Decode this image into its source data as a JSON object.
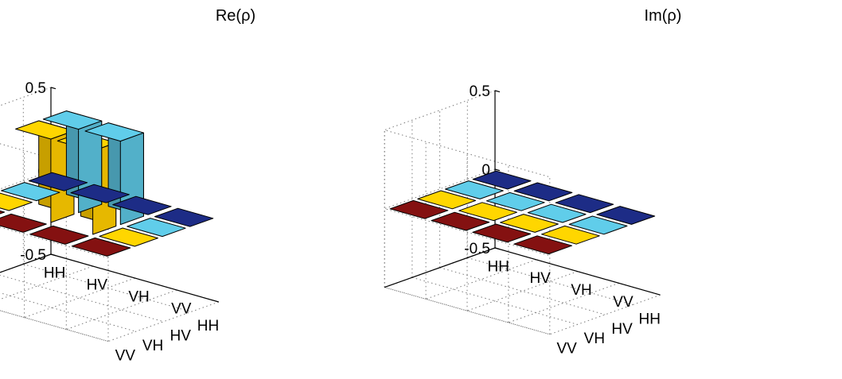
{
  "chart_data": [
    {
      "type": "bar3d",
      "title": "Re(ρ)",
      "row_labels": [
        "HH",
        "HV",
        "VH",
        "VV"
      ],
      "col_labels": [
        "HH",
        "HV",
        "VH",
        "VV"
      ],
      "zlim": [
        -0.5,
        0.5
      ],
      "zticks": [
        "-0.5",
        "0",
        "0.5"
      ],
      "grid": true,
      "values": [
        [
          0.0,
          0.0,
          0.0,
          0.0
        ],
        [
          0.0,
          0.5,
          0.5,
          0.0
        ],
        [
          0.0,
          0.5,
          0.5,
          0.0
        ],
        [
          0.0,
          0.0,
          0.0,
          0.0
        ]
      ],
      "column_colors": [
        "#1c2a80",
        "#5bc3df",
        "#ffcc00",
        "#7e1010"
      ]
    },
    {
      "type": "bar3d",
      "title": "Im(ρ)",
      "row_labels": [
        "HH",
        "HV",
        "VH",
        "VV"
      ],
      "col_labels": [
        "HH",
        "HV",
        "VH",
        "VV"
      ],
      "zlim": [
        -0.5,
        0.5
      ],
      "zticks": [
        "-0.5",
        "0",
        "0.5"
      ],
      "grid": true,
      "values": [
        [
          0.0,
          0.0,
          0.0,
          0.0
        ],
        [
          0.0,
          0.0,
          0.0,
          0.0
        ],
        [
          0.0,
          0.0,
          0.0,
          0.0
        ],
        [
          0.0,
          0.0,
          0.0,
          0.0
        ]
      ],
      "column_colors": [
        "#1c2a80",
        "#5bc3df",
        "#ffcc00",
        "#7e1010"
      ]
    }
  ]
}
